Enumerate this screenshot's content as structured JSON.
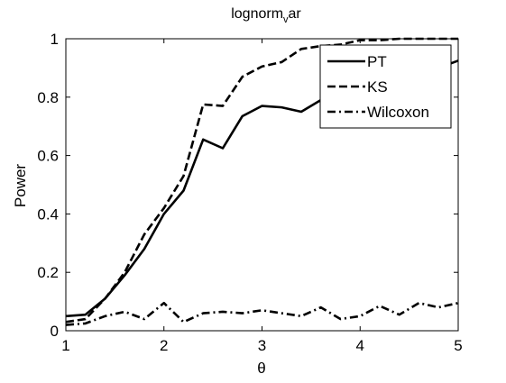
{
  "chart_data": {
    "type": "line",
    "title_main": "lognorm",
    "title_sub": "v",
    "title_tail": "ar",
    "xlabel": "θ",
    "ylabel": "Power",
    "xlim": [
      1,
      5
    ],
    "ylim": [
      0,
      1
    ],
    "xticks": [
      1,
      2,
      3,
      4,
      5
    ],
    "yticks": [
      0,
      0.2,
      0.4,
      0.6,
      0.8,
      1
    ],
    "xtick_labels": [
      "1",
      "2",
      "3",
      "4",
      "5"
    ],
    "ytick_labels": [
      "0",
      "0.2",
      "0.4",
      "0.6",
      "0.8",
      "1"
    ],
    "grid": false,
    "legend_position": "top-right",
    "series": [
      {
        "name": "PT",
        "style": "solid",
        "color": "#000000",
        "x": [
          1,
          1.2,
          1.4,
          1.6,
          1.8,
          2.0,
          2.2,
          2.4,
          2.6,
          2.8,
          3.0,
          3.2,
          3.4,
          3.6,
          3.8,
          4.0,
          4.2,
          4.4,
          4.6,
          4.8,
          5.0
        ],
        "y": [
          0.05,
          0.055,
          0.11,
          0.19,
          0.28,
          0.4,
          0.48,
          0.655,
          0.625,
          0.735,
          0.77,
          0.765,
          0.75,
          0.79,
          0.84,
          0.88,
          0.9,
          0.9,
          0.9,
          0.9,
          0.925
        ]
      },
      {
        "name": "KS",
        "style": "dashed",
        "color": "#000000",
        "x": [
          1,
          1.2,
          1.4,
          1.6,
          1.8,
          2.0,
          2.2,
          2.4,
          2.6,
          2.8,
          3.0,
          3.2,
          3.4,
          3.6,
          3.8,
          4.0,
          4.2,
          4.4,
          4.6,
          4.8,
          5.0
        ],
        "y": [
          0.03,
          0.04,
          0.11,
          0.2,
          0.33,
          0.42,
          0.53,
          0.775,
          0.77,
          0.87,
          0.905,
          0.92,
          0.965,
          0.975,
          0.98,
          0.995,
          0.995,
          1.0,
          1.0,
          1.0,
          1.0
        ]
      },
      {
        "name": "Wilcoxon",
        "style": "dashdot",
        "color": "#000000",
        "x": [
          1,
          1.2,
          1.4,
          1.6,
          1.8,
          2.0,
          2.2,
          2.4,
          2.6,
          2.8,
          3.0,
          3.2,
          3.4,
          3.6,
          3.8,
          4.0,
          4.2,
          4.4,
          4.6,
          4.8,
          5.0
        ],
        "y": [
          0.02,
          0.025,
          0.05,
          0.065,
          0.04,
          0.095,
          0.03,
          0.06,
          0.065,
          0.06,
          0.07,
          0.06,
          0.05,
          0.08,
          0.04,
          0.05,
          0.085,
          0.055,
          0.095,
          0.08,
          0.095
        ]
      }
    ]
  }
}
